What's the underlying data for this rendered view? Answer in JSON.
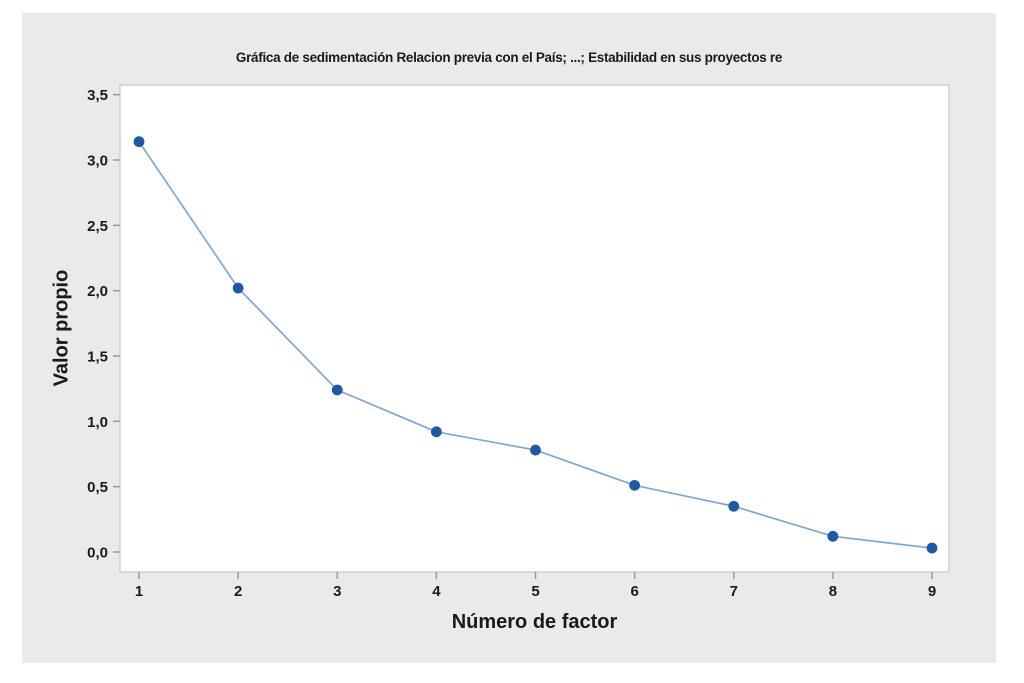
{
  "chart_data": {
    "type": "line",
    "title": "Gráfica de sedimentación Relacion previa con el País; ...; Estabilidad en sus proyectos re",
    "xlabel": "Número de factor",
    "ylabel": "Valor propio",
    "x": [
      1,
      2,
      3,
      4,
      5,
      6,
      7,
      8,
      9
    ],
    "values": [
      3.14,
      2.02,
      1.24,
      0.92,
      0.78,
      0.51,
      0.35,
      0.12,
      0.03
    ],
    "xtick_labels": [
      "1",
      "2",
      "3",
      "4",
      "5",
      "6",
      "7",
      "8",
      "9"
    ],
    "ytick_labels": [
      "0,0",
      "0,5",
      "1,0",
      "1,5",
      "2,0",
      "2,5",
      "3,0",
      "3,5"
    ],
    "ytick_values": [
      0,
      0.5,
      1,
      1.5,
      2,
      2.5,
      3,
      3.5
    ],
    "xlim": [
      1,
      9
    ],
    "ylim": [
      0,
      3.5
    ],
    "grid": false,
    "legend": null,
    "colors": {
      "canvas_bg": "#e9eaea",
      "plot_bg": "#ffffff",
      "plot_border": "#c9cbcb",
      "tick": "#9b9b9b",
      "text": "#1a1a1a",
      "line": "#7ea6d8",
      "marker": "#1e59a8"
    }
  }
}
